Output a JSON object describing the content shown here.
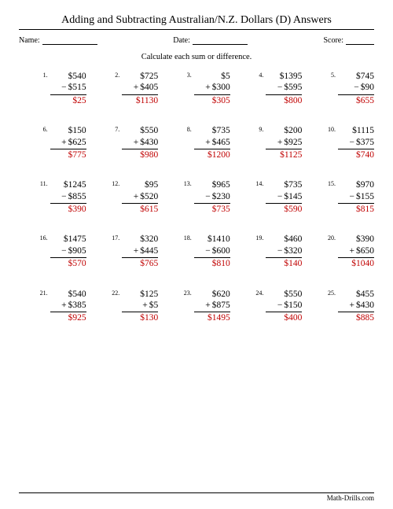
{
  "title": "Adding and Subtracting Australian/N.Z. Dollars (D) Answers",
  "meta": {
    "name_label": "Name:",
    "date_label": "Date:",
    "score_label": "Score:"
  },
  "instruction": "Calculate each sum or difference.",
  "footer": "Math-Drills.com",
  "colors": {
    "answer": "#c00000",
    "text": "#000000",
    "background": "#ffffff"
  },
  "problems": [
    {
      "n": "1.",
      "a": "$540",
      "op": "−",
      "b": "$515",
      "ans": "$25"
    },
    {
      "n": "2.",
      "a": "$725",
      "op": "+",
      "b": "$405",
      "ans": "$1130"
    },
    {
      "n": "3.",
      "a": "$5",
      "op": "+",
      "b": "$300",
      "ans": "$305"
    },
    {
      "n": "4.",
      "a": "$1395",
      "op": "−",
      "b": "$595",
      "ans": "$800"
    },
    {
      "n": "5.",
      "a": "$745",
      "op": "−",
      "b": "$90",
      "ans": "$655"
    },
    {
      "n": "6.",
      "a": "$150",
      "op": "+",
      "b": "$625",
      "ans": "$775"
    },
    {
      "n": "7.",
      "a": "$550",
      "op": "+",
      "b": "$430",
      "ans": "$980"
    },
    {
      "n": "8.",
      "a": "$735",
      "op": "+",
      "b": "$465",
      "ans": "$1200"
    },
    {
      "n": "9.",
      "a": "$200",
      "op": "+",
      "b": "$925",
      "ans": "$1125"
    },
    {
      "n": "10.",
      "a": "$1115",
      "op": "−",
      "b": "$375",
      "ans": "$740"
    },
    {
      "n": "11.",
      "a": "$1245",
      "op": "−",
      "b": "$855",
      "ans": "$390"
    },
    {
      "n": "12.",
      "a": "$95",
      "op": "+",
      "b": "$520",
      "ans": "$615"
    },
    {
      "n": "13.",
      "a": "$965",
      "op": "−",
      "b": "$230",
      "ans": "$735"
    },
    {
      "n": "14.",
      "a": "$735",
      "op": "−",
      "b": "$145",
      "ans": "$590"
    },
    {
      "n": "15.",
      "a": "$970",
      "op": "−",
      "b": "$155",
      "ans": "$815"
    },
    {
      "n": "16.",
      "a": "$1475",
      "op": "−",
      "b": "$905",
      "ans": "$570"
    },
    {
      "n": "17.",
      "a": "$320",
      "op": "+",
      "b": "$445",
      "ans": "$765"
    },
    {
      "n": "18.",
      "a": "$1410",
      "op": "−",
      "b": "$600",
      "ans": "$810"
    },
    {
      "n": "19.",
      "a": "$460",
      "op": "−",
      "b": "$320",
      "ans": "$140"
    },
    {
      "n": "20.",
      "a": "$390",
      "op": "+",
      "b": "$650",
      "ans": "$1040"
    },
    {
      "n": "21.",
      "a": "$540",
      "op": "+",
      "b": "$385",
      "ans": "$925"
    },
    {
      "n": "22.",
      "a": "$125",
      "op": "+",
      "b": "$5",
      "ans": "$130"
    },
    {
      "n": "23.",
      "a": "$620",
      "op": "+",
      "b": "$875",
      "ans": "$1495"
    },
    {
      "n": "24.",
      "a": "$550",
      "op": "−",
      "b": "$150",
      "ans": "$400"
    },
    {
      "n": "25.",
      "a": "$455",
      "op": "+",
      "b": "$430",
      "ans": "$885"
    }
  ]
}
